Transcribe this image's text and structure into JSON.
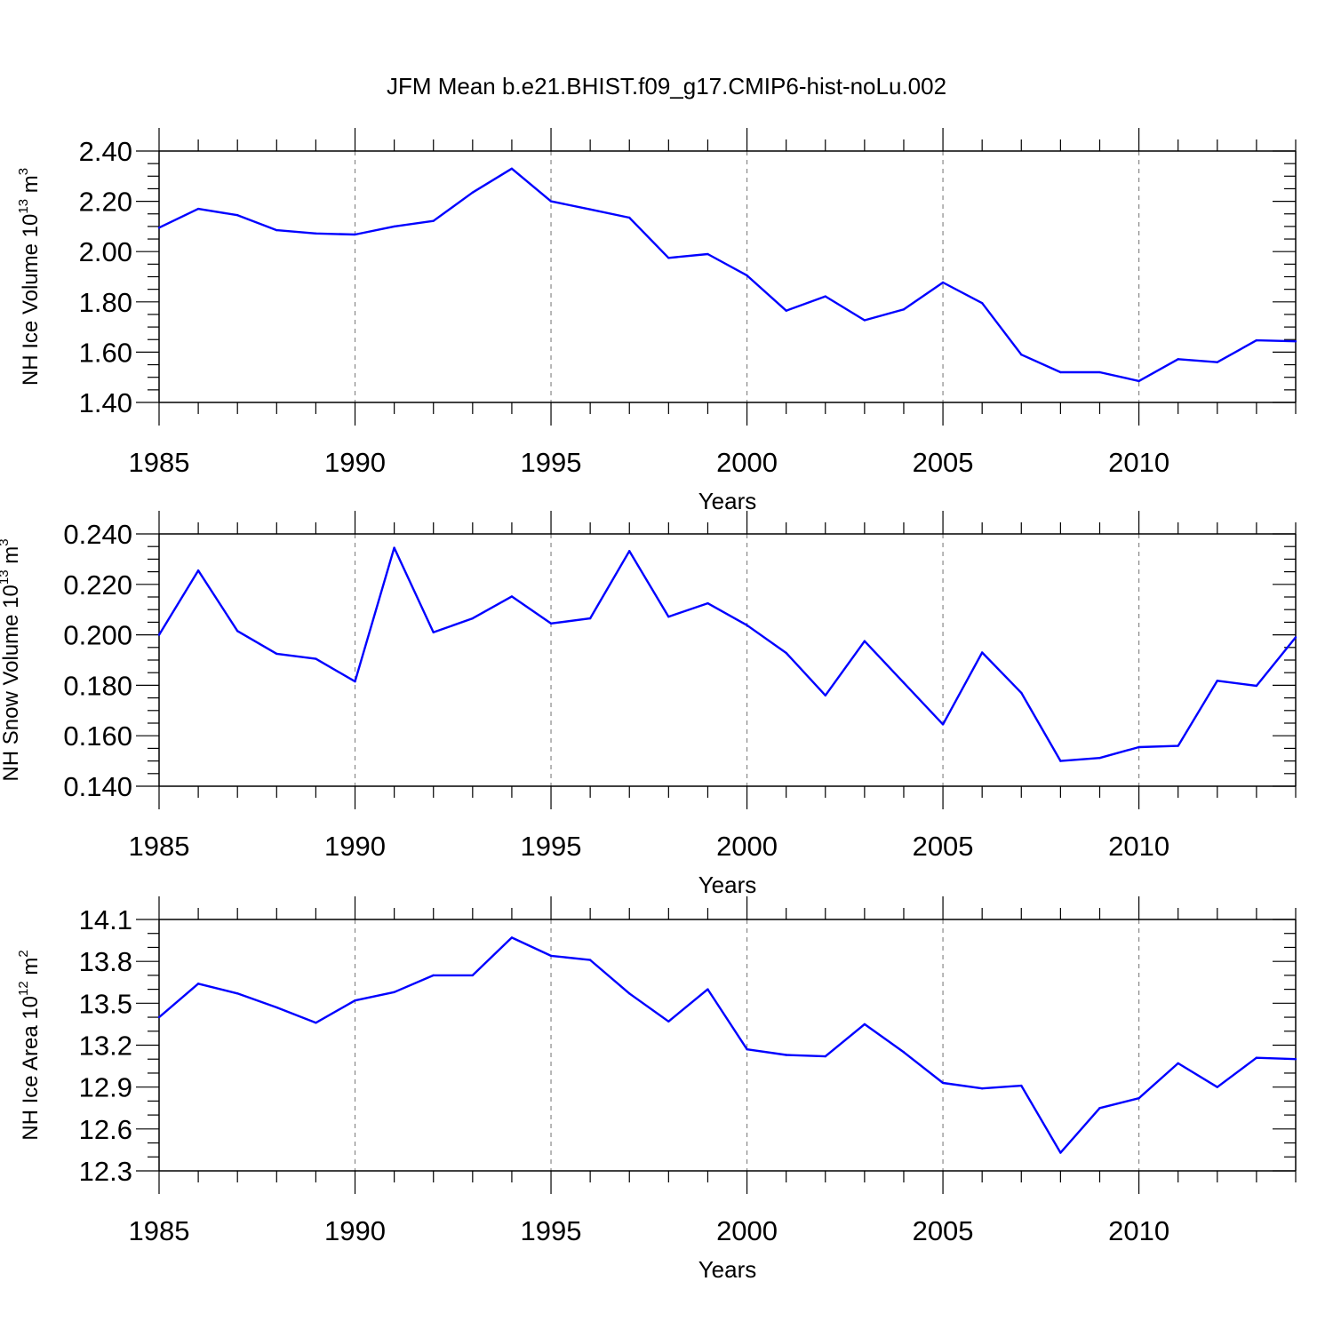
{
  "title": "JFM Mean b.e21.BHIST.f09_g17.CMIP6-hist-noLu.002",
  "colors": {
    "series": "#0000ff",
    "axis": "#000000",
    "grid": "#888888"
  },
  "chart_data": [
    {
      "type": "line",
      "name": "ice-volume",
      "xlabel": "Years",
      "ylabel": {
        "text": "NH Ice Volume 10",
        "sup": "13",
        "unit": " m",
        "unit_sup": "3"
      },
      "xlim": [
        1985,
        2014
      ],
      "ylim": [
        1.4,
        2.4
      ],
      "xticks": [
        1985,
        1990,
        1995,
        2000,
        2005,
        2010
      ],
      "xtick_labels": [
        "1985",
        "1990",
        "1995",
        "2000",
        "2005",
        "2010"
      ],
      "yticks": [
        1.4,
        1.6,
        1.8,
        2.0,
        2.2,
        2.4
      ],
      "ytick_labels": [
        "1.40",
        "1.60",
        "1.80",
        "2.00",
        "2.20",
        "2.40"
      ],
      "y_minor_step": 0.05,
      "grid": "vertical dashed at major x ticks",
      "x": [
        1985,
        1986,
        1987,
        1988,
        1989,
        1990,
        1991,
        1992,
        1993,
        1994,
        1995,
        1996,
        1997,
        1998,
        1999,
        2000,
        2001,
        2002,
        2003,
        2004,
        2005,
        2006,
        2007,
        2008,
        2009,
        2010,
        2011,
        2012,
        2013,
        2014
      ],
      "y": [
        2.095,
        2.17,
        2.145,
        2.085,
        2.072,
        2.068,
        2.1,
        2.122,
        2.235,
        2.33,
        2.2,
        2.168,
        2.135,
        1.975,
        1.99,
        1.905,
        1.765,
        1.822,
        1.727,
        1.77,
        1.877,
        1.795,
        1.59,
        1.52,
        1.52,
        1.485,
        1.572,
        1.56,
        1.647,
        1.643
      ]
    },
    {
      "type": "line",
      "name": "snow-volume",
      "xlabel": "Years",
      "ylabel": {
        "text": "NH Snow Volume 10",
        "sup": "13",
        "unit": " m",
        "unit_sup": "3"
      },
      "xlim": [
        1985,
        2014
      ],
      "ylim": [
        0.14,
        0.24
      ],
      "xticks": [
        1985,
        1990,
        1995,
        2000,
        2005,
        2010
      ],
      "xtick_labels": [
        "1985",
        "1990",
        "1995",
        "2000",
        "2005",
        "2010"
      ],
      "yticks": [
        0.14,
        0.16,
        0.18,
        0.2,
        0.22,
        0.24
      ],
      "ytick_labels": [
        "0.140",
        "0.160",
        "0.180",
        "0.200",
        "0.220",
        "0.240"
      ],
      "y_minor_step": 0.005,
      "grid": "vertical dashed at major x ticks",
      "x": [
        1985,
        1986,
        1987,
        1988,
        1989,
        1990,
        1991,
        1992,
        1993,
        1994,
        1995,
        1996,
        1997,
        1998,
        1999,
        2000,
        2001,
        2002,
        2003,
        2004,
        2005,
        2006,
        2007,
        2008,
        2009,
        2010,
        2011,
        2012,
        2013,
        2014
      ],
      "y": [
        0.2,
        0.2255,
        0.2015,
        0.1925,
        0.1905,
        0.1815,
        0.2345,
        0.201,
        0.2065,
        0.2152,
        0.2045,
        0.2065,
        0.2332,
        0.2072,
        0.2125,
        0.2038,
        0.1928,
        0.176,
        0.1975,
        0.181,
        0.1645,
        0.193,
        0.177,
        0.15,
        0.1512,
        0.1555,
        0.156,
        0.1818,
        0.1798,
        0.199
      ]
    },
    {
      "type": "line",
      "name": "ice-area",
      "xlabel": "Years",
      "ylabel": {
        "text": "NH Ice Area 10",
        "sup": "12",
        "unit": " m",
        "unit_sup": "2"
      },
      "xlim": [
        1985,
        2014
      ],
      "ylim": [
        12.3,
        14.1
      ],
      "xticks": [
        1985,
        1990,
        1995,
        2000,
        2005,
        2010
      ],
      "xtick_labels": [
        "1985",
        "1990",
        "1995",
        "2000",
        "2005",
        "2010"
      ],
      "yticks": [
        12.3,
        12.6,
        12.9,
        13.2,
        13.5,
        13.8,
        14.1
      ],
      "ytick_labels": [
        "12.3",
        "12.6",
        "12.9",
        "13.2",
        "13.5",
        "13.8",
        "14.1"
      ],
      "y_minor_step": 0.1,
      "grid": "vertical dashed at major x ticks",
      "x": [
        1985,
        1986,
        1987,
        1988,
        1989,
        1990,
        1991,
        1992,
        1993,
        1994,
        1995,
        1996,
        1997,
        1998,
        1999,
        2000,
        2001,
        2002,
        2003,
        2004,
        2005,
        2006,
        2007,
        2008,
        2009,
        2010,
        2011,
        2012,
        2013,
        2014
      ],
      "y": [
        13.4,
        13.64,
        13.57,
        13.47,
        13.36,
        13.52,
        13.58,
        13.7,
        13.7,
        13.97,
        13.84,
        13.81,
        13.57,
        13.37,
        13.6,
        13.17,
        13.13,
        13.12,
        13.35,
        13.15,
        12.93,
        12.89,
        12.91,
        12.43,
        12.75,
        12.82,
        13.07,
        12.9,
        13.11,
        13.1
      ]
    }
  ]
}
